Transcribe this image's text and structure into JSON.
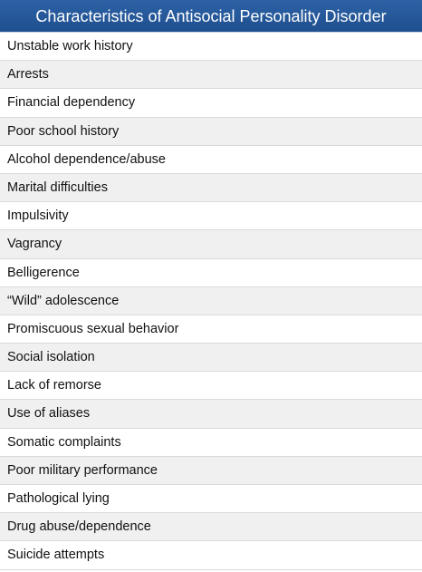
{
  "table": {
    "title": "Characteristics of Antisocial Personality Disorder",
    "items": [
      "Unstable work history",
      "Arrests",
      "Financial dependency",
      "Poor school history",
      "Alcohol dependence/abuse",
      "Marital difficulties",
      "Impulsivity",
      "Vagrancy",
      "Belligerence",
      "“Wild” adolescence",
      "Promiscuous sexual behavior",
      "Social isolation",
      "Lack of remorse",
      "Use of aliases",
      "Somatic complaints",
      "Poor military performance",
      "Pathological lying",
      "Drug abuse/dependence",
      "Suicide attempts"
    ],
    "colors": {
      "header_bg": "#2b60a3",
      "header_text": "#ffffff",
      "row_alt_bg": "#f0f0f0"
    }
  }
}
